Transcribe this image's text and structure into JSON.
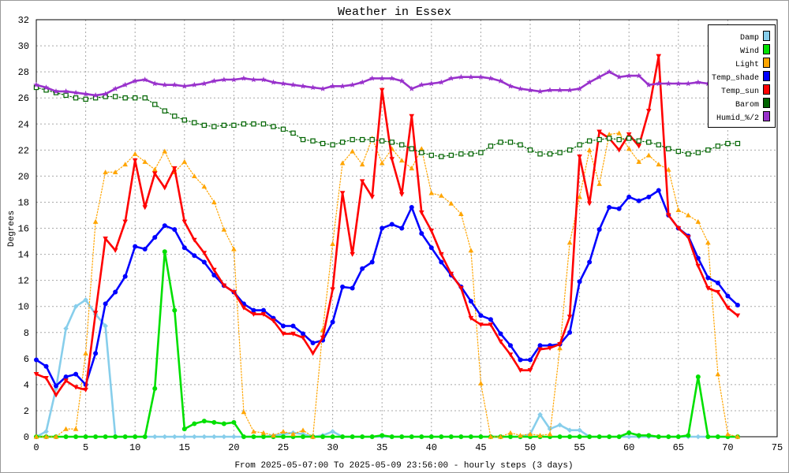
{
  "chart_data": {
    "type": "line",
    "title": "Weather in Essex",
    "xlabel": "From 2025-05-07:00 To 2025-05-09 23:56:00 - hourly steps (3 days)",
    "ylabel": "Degrees",
    "xlim": [
      0,
      75
    ],
    "ylim": [
      0,
      32
    ],
    "xticks": [
      0,
      5,
      10,
      15,
      20,
      25,
      30,
      35,
      40,
      45,
      50,
      55,
      60,
      65,
      70,
      75
    ],
    "yticks": [
      0,
      2,
      4,
      6,
      8,
      10,
      12,
      14,
      16,
      18,
      20,
      22,
      24,
      26,
      28,
      30,
      32
    ],
    "grid": true,
    "legend_position": "top-right",
    "x": [
      0,
      1,
      2,
      3,
      4,
      5,
      6,
      7,
      8,
      9,
      10,
      11,
      12,
      13,
      14,
      15,
      16,
      17,
      18,
      19,
      20,
      21,
      22,
      23,
      24,
      25,
      26,
      27,
      28,
      29,
      30,
      31,
      32,
      33,
      34,
      35,
      36,
      37,
      38,
      39,
      40,
      41,
      42,
      43,
      44,
      45,
      46,
      47,
      48,
      49,
      50,
      51,
      52,
      53,
      54,
      55,
      56,
      57,
      58,
      59,
      60,
      61,
      62,
      63,
      64,
      65,
      66,
      67,
      68,
      69,
      70,
      71
    ],
    "series": [
      {
        "name": "Damp",
        "color": "#87ceeb",
        "marker": "diamond",
        "line": "solid",
        "values": [
          0,
          0.4,
          3.7,
          8.3,
          10.0,
          10.5,
          9.4,
          8.5,
          0,
          0,
          0,
          0,
          0,
          0,
          0,
          0,
          0,
          0,
          0,
          0,
          0,
          0,
          0,
          0,
          0.1,
          0.2,
          0.3,
          0.2,
          0,
          0.1,
          0.4,
          0,
          0,
          0,
          0,
          0,
          0,
          0,
          0,
          0,
          0,
          0,
          0,
          0,
          0,
          0,
          0,
          0,
          0,
          0,
          0.2,
          1.7,
          0.6,
          0.9,
          0.5,
          0.5,
          0,
          0,
          0,
          0,
          0,
          0,
          0,
          0,
          0,
          0,
          0,
          0,
          0,
          0,
          0,
          0
        ]
      },
      {
        "name": "Wind",
        "color": "#00e000",
        "marker": "circle",
        "line": "solid",
        "values": [
          0,
          0,
          0,
          0,
          0,
          0,
          0,
          0,
          0,
          0,
          0,
          0,
          3.7,
          14.2,
          9.7,
          0.6,
          1.0,
          1.2,
          1.1,
          1.0,
          1.1,
          0,
          0,
          0,
          0,
          0,
          0,
          0,
          0,
          0,
          0,
          0,
          0,
          0,
          0,
          0.1,
          0,
          0,
          0,
          0,
          0,
          0,
          0,
          0,
          0,
          0,
          0,
          0,
          0,
          0,
          0,
          0,
          0,
          0,
          0,
          0,
          0,
          0,
          0,
          0,
          0.3,
          0.1,
          0.1,
          0,
          0,
          0,
          0.1,
          4.6,
          0,
          0,
          0,
          0
        ]
      },
      {
        "name": "Light",
        "color": "#ffa500",
        "marker": "triangle-up",
        "line": "dotted",
        "values": [
          0,
          0,
          0,
          0.6,
          0.6,
          6.4,
          16.5,
          20.3,
          20.3,
          20.9,
          21.7,
          21.1,
          20.5,
          21.9,
          20.3,
          21.1,
          20.0,
          19.2,
          18.0,
          15.9,
          14.4,
          1.9,
          0.4,
          0.3,
          0.1,
          0.4,
          0.2,
          0.5,
          0,
          8.2,
          14.8,
          21.0,
          21.9,
          20.9,
          22.9,
          21.0,
          22.1,
          21.2,
          20.6,
          22.1,
          18.7,
          18.5,
          17.9,
          17.1,
          14.3,
          4.1,
          0,
          0,
          0.3,
          0.1,
          0.2,
          0.1,
          0.2,
          6.8,
          14.9,
          18.4,
          22.0,
          19.4,
          23.2,
          23.3,
          22.1,
          21.1,
          21.6,
          20.9,
          20.5,
          17.4,
          17.0,
          16.5,
          14.9,
          4.8,
          0.2,
          0
        ]
      },
      {
        "name": "Temp_shade",
        "color": "#0000ff",
        "marker": "circle",
        "line": "solid",
        "values": [
          5.9,
          5.4,
          3.9,
          4.6,
          4.8,
          4.0,
          6.4,
          10.2,
          11.1,
          12.3,
          14.6,
          14.4,
          15.3,
          16.2,
          15.9,
          14.5,
          13.9,
          13.4,
          12.4,
          11.6,
          11.1,
          10.2,
          9.7,
          9.7,
          9.1,
          8.5,
          8.5,
          7.9,
          7.2,
          7.4,
          8.8,
          11.5,
          11.4,
          12.9,
          13.4,
          16.0,
          16.3,
          16.0,
          17.6,
          15.6,
          14.5,
          13.4,
          12.4,
          11.5,
          10.4,
          9.3,
          9.0,
          7.9,
          7.0,
          5.9,
          5.9,
          7.0,
          7.0,
          7.1,
          8.0,
          11.9,
          13.4,
          15.9,
          17.6,
          17.5,
          18.4,
          18.1,
          18.4,
          18.9,
          17.0,
          16.0,
          15.4,
          13.7,
          12.2,
          11.8,
          10.8,
          10.1
        ]
      },
      {
        "name": "Temp_sun",
        "color": "#ff0000",
        "marker": "triangle-down",
        "line": "solid",
        "values": [
          4.8,
          4.5,
          3.2,
          4.3,
          3.8,
          3.6,
          9.5,
          15.2,
          14.3,
          16.5,
          21.2,
          17.6,
          20.2,
          19.1,
          20.6,
          16.5,
          15.1,
          14.1,
          12.8,
          11.6,
          11.1,
          9.9,
          9.4,
          9.4,
          8.9,
          7.9,
          7.9,
          7.6,
          6.4,
          7.6,
          11.3,
          18.7,
          14.0,
          19.6,
          18.4,
          26.6,
          21.3,
          18.6,
          24.6,
          17.2,
          15.8,
          14.0,
          12.5,
          11.4,
          9.1,
          8.6,
          8.6,
          7.3,
          6.3,
          5.1,
          5.1,
          6.7,
          6.8,
          7.1,
          9.2,
          21.5,
          17.9,
          23.4,
          22.9,
          22.0,
          23.2,
          22.3,
          25.0,
          29.2,
          17.0,
          16.0,
          15.3,
          13.1,
          11.4,
          11.1,
          9.9,
          9.3
        ]
      },
      {
        "name": "Barom",
        "color": "#006400",
        "marker": "square-open",
        "line": "dotted",
        "values": [
          26.8,
          26.6,
          26.4,
          26.2,
          26.0,
          25.9,
          26.0,
          26.1,
          26.1,
          26.0,
          26.0,
          26.0,
          25.5,
          25.0,
          24.6,
          24.3,
          24.1,
          23.9,
          23.8,
          23.9,
          23.9,
          24.0,
          24.0,
          24.0,
          23.8,
          23.6,
          23.3,
          22.8,
          22.7,
          22.5,
          22.4,
          22.6,
          22.8,
          22.8,
          22.8,
          22.7,
          22.6,
          22.4,
          22.1,
          21.8,
          21.6,
          21.5,
          21.6,
          21.7,
          21.7,
          21.8,
          22.3,
          22.6,
          22.6,
          22.4,
          22.0,
          21.7,
          21.7,
          21.8,
          22.0,
          22.4,
          22.7,
          22.8,
          22.9,
          22.8,
          22.9,
          22.7,
          22.6,
          22.4,
          22.1,
          21.9,
          21.7,
          21.8,
          22.0,
          22.3,
          22.5,
          22.5
        ]
      },
      {
        "name": "Humid_%/2",
        "color": "#9932cc",
        "marker": "star",
        "line": "solid",
        "values": [
          27.0,
          26.8,
          26.5,
          26.5,
          26.4,
          26.3,
          26.2,
          26.3,
          26.7,
          27.0,
          27.3,
          27.4,
          27.1,
          27.0,
          27.0,
          26.9,
          27.0,
          27.1,
          27.3,
          27.4,
          27.4,
          27.5,
          27.4,
          27.4,
          27.2,
          27.1,
          27.0,
          26.9,
          26.8,
          26.7,
          26.9,
          26.9,
          27.0,
          27.2,
          27.5,
          27.5,
          27.5,
          27.3,
          26.7,
          27.0,
          27.1,
          27.2,
          27.5,
          27.6,
          27.6,
          27.6,
          27.5,
          27.3,
          26.9,
          26.7,
          26.6,
          26.5,
          26.6,
          26.6,
          26.6,
          26.7,
          27.2,
          27.6,
          28.0,
          27.6,
          27.7,
          27.7,
          27.0,
          27.1,
          27.1,
          27.1,
          27.1,
          27.2,
          27.1,
          26.7,
          null,
          null
        ]
      }
    ]
  }
}
